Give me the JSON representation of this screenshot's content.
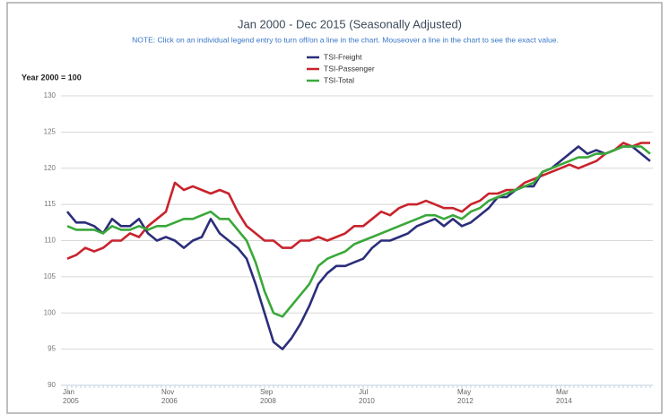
{
  "chart_data": {
    "type": "line",
    "title": "Jan 2000 - Dec 2015 (Seasonally Adjusted)",
    "subtitle": "NOTE: Click on an individual legend entry to turn off/on a line in the chart. Mouseover a line in the chart to see the exact value.",
    "y_label": "Year 2000 = 100",
    "x": [
      "2005-01",
      "2005-03",
      "2005-05",
      "2005-07",
      "2005-09",
      "2005-11",
      "2006-01",
      "2006-03",
      "2006-05",
      "2006-07",
      "2006-09",
      "2006-11",
      "2007-01",
      "2007-03",
      "2007-05",
      "2007-07",
      "2007-09",
      "2007-11",
      "2008-01",
      "2008-03",
      "2008-05",
      "2008-07",
      "2008-09",
      "2008-11",
      "2009-01",
      "2009-03",
      "2009-05",
      "2009-07",
      "2009-09",
      "2009-11",
      "2010-01",
      "2010-03",
      "2010-05",
      "2010-07",
      "2010-09",
      "2010-11",
      "2011-01",
      "2011-03",
      "2011-05",
      "2011-07",
      "2011-09",
      "2011-11",
      "2012-01",
      "2012-03",
      "2012-05",
      "2012-07",
      "2012-09",
      "2012-11",
      "2013-01",
      "2013-03",
      "2013-05",
      "2013-07",
      "2013-09",
      "2013-11",
      "2014-01",
      "2014-03",
      "2014-05",
      "2014-07",
      "2014-09",
      "2014-11",
      "2015-01",
      "2015-03",
      "2015-05",
      "2015-07",
      "2015-09",
      "2015-11"
    ],
    "series": [
      {
        "name": "TSI-Freight",
        "color": "#2b2e7a",
        "values": [
          114,
          112.5,
          112.5,
          112,
          111,
          113,
          112,
          112,
          113,
          111,
          110,
          110.5,
          110,
          109,
          110,
          110.5,
          113,
          111,
          110,
          109,
          107.5,
          104,
          100,
          96,
          95,
          96.5,
          98.5,
          101,
          104,
          105.5,
          106.5,
          106.5,
          107,
          107.5,
          109,
          110,
          110,
          110.5,
          111,
          112,
          112.5,
          113,
          112,
          113,
          112,
          112.5,
          113.5,
          114.5,
          116,
          116,
          117,
          117.5,
          117.5,
          119.5,
          120,
          121,
          122,
          123,
          122,
          122.5,
          122,
          122.5,
          123,
          123,
          122,
          121
        ]
      },
      {
        "name": "TSI-Passenger",
        "color": "#c8232c",
        "values": [
          107.5,
          108,
          109,
          108.5,
          109,
          110,
          110,
          111,
          110.5,
          112,
          113,
          114,
          118,
          117,
          117.5,
          117,
          116.5,
          117,
          116.5,
          114,
          112,
          111,
          110,
          110,
          109,
          109,
          110,
          110,
          110.5,
          110,
          110.5,
          111,
          112,
          112,
          113,
          114,
          113.5,
          114.5,
          115,
          115,
          115.5,
          115,
          114.5,
          114.5,
          114,
          115,
          115.5,
          116.5,
          116.5,
          117,
          117,
          118,
          118.5,
          119,
          119.5,
          120,
          120.5,
          120,
          120.5,
          121,
          122,
          122.5,
          123.5,
          123,
          123.5,
          123.5
        ]
      },
      {
        "name": "TSI-Total",
        "color": "#3aa83a",
        "values": [
          112,
          111.5,
          111.5,
          111.5,
          111,
          112,
          111.5,
          111.5,
          112,
          111.5,
          112,
          112,
          112.5,
          113,
          113,
          113.5,
          114,
          113,
          113,
          111.5,
          110,
          107,
          103,
          100,
          99.5,
          101,
          102.5,
          104,
          106.5,
          107.5,
          108,
          108.5,
          109.5,
          110,
          110.5,
          111,
          111.5,
          112,
          112.5,
          113,
          113.5,
          113.5,
          113,
          113.5,
          113,
          114,
          114.5,
          115.5,
          116,
          116.5,
          117,
          117.5,
          118,
          119.5,
          120,
          120.5,
          121,
          121.5,
          121.5,
          122,
          122,
          122.5,
          123,
          123,
          123,
          122
        ]
      }
    ],
    "xlim": [
      "2005-01",
      "2015-11"
    ],
    "xticks": [
      {
        "value": "2005-01",
        "label": "Jan 2005"
      },
      {
        "value": "2006-11",
        "label": "Nov 2006"
      },
      {
        "value": "2008-09",
        "label": "Sep 2008"
      },
      {
        "value": "2010-07",
        "label": "Jul 2010"
      },
      {
        "value": "2012-05",
        "label": "May 2012"
      },
      {
        "value": "2014-03",
        "label": "Mar 2014"
      }
    ],
    "ylim": [
      90,
      130
    ],
    "yticks": [
      90,
      95,
      100,
      105,
      110,
      115,
      120,
      125,
      130
    ],
    "grid": true,
    "legend": "top"
  }
}
